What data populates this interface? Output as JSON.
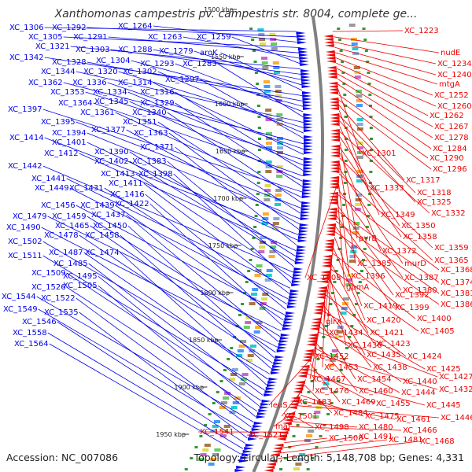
{
  "title": "Xanthomonas campestris pv. campestris str. 8004, complete ge...",
  "accession": "Accession: NC_007086",
  "topology": "Topology: circular; Length: 5,148,708 bp; Genes: 4,331",
  "colors": {
    "forward": "#0000ee",
    "reverse": "#ee0000",
    "backbone": "#808080",
    "gc": "#339933"
  },
  "kbp_marks": [
    "1500 kbp",
    "1550 kbp",
    "1600 kbp",
    "1650 kbp",
    "1700 kbp",
    "1750 kbp",
    "1800 kbp",
    "1850 kbp",
    "1900 kbp",
    "1950 kbp"
  ],
  "left_genes": [
    "XC_1306",
    "XC_1292",
    "XC_1264",
    "XC_1305",
    "XC_1291",
    "XC_1263",
    "XC_1259",
    "XC_1321",
    "XC_1303",
    "XC_1288",
    "XC_1279",
    "aroK",
    "XC_1342",
    "XC_1328",
    "XC_1304",
    "XC_1293",
    "XC_1283",
    "XC_1344",
    "XC_1320",
    "XC_1302",
    "XC_1297",
    "XC_1362",
    "XC_1336",
    "XC_1314",
    "XC_1353",
    "XC_1334",
    "XC_1316",
    "XC_1364",
    "XC_1345",
    "XC_1329",
    "XC_1397",
    "XC_1361",
    "XC_1340",
    "XC_1395",
    "XC_1351",
    "XC_1394",
    "XC_1377",
    "XC_1363",
    "XC_1414",
    "XC_1401",
    "XC_1371",
    "XC_1412",
    "XC_1390",
    "XC_1402",
    "XC_1383",
    "XC_1442",
    "XC_1413",
    "XC_1398",
    "XC_1441",
    "XC_1411",
    "XC_1449",
    "XC_1431",
    "XC_1416",
    "XC_1456",
    "XC_1439",
    "XC_1422",
    "XC_1479",
    "XC_1459",
    "XC_1437",
    "XC_1490",
    "XC_1465",
    "XC_1450",
    "XC_1478",
    "XC_1458",
    "XC_1502",
    "XC_1487",
    "XC_1474",
    "XC_1511",
    "XC_1485",
    "XC_1509",
    "XC_1495",
    "XC_1526",
    "XC_1505",
    "XC_1544",
    "XC_1522",
    "XC_1549",
    "XC_1535",
    "XC_1546",
    "XC_1558",
    "XC_1564"
  ],
  "right_genes": [
    "XC_1223",
    "nudE",
    "XC_1234",
    "XC_1240",
    "mtgA",
    "XC_1252",
    "XC_1260",
    "XC_1262",
    "XC_1267",
    "XC_1278",
    "XC_1284",
    "XC_1301",
    "XC_1290",
    "XC_1296",
    "XC_1317",
    "XC_1333",
    "XC_1318",
    "XC_1325",
    "XC_1349",
    "XC_1332",
    "XC_1350",
    "pyrB",
    "XC_1358",
    "XC_1372",
    "XC_1359",
    "XC_1385",
    "murD",
    "XC_1365",
    "XC_1408",
    "XC_1396",
    "XC_1387",
    "XC_1368",
    "gpmA",
    "XC_1380",
    "XC_1374",
    "XC_1392",
    "XC_1381",
    "XC_1399",
    "XC_1386",
    "XC_1419",
    "glrX",
    "XC_1420",
    "XC_1400",
    "XC_1434",
    "XC_1421",
    "XC_1405",
    "XC_1436",
    "XC_1423",
    "XC_1452",
    "XC_1435",
    "XC_1424",
    "XC_1453",
    "XC_1438",
    "XC_1425",
    "XC_1467",
    "XC_1454",
    "XC_1440",
    "XC_1427",
    "XC_1476",
    "XC_1460",
    "XC_1444",
    "XC_1432",
    "leuS",
    "XC_1469",
    "XC_1455",
    "XC_1445",
    "XC_1483",
    "XC_1484",
    "XC_1501",
    "XC_1475",
    "XC_1461",
    "XC_1446",
    "maf",
    "XC_1498",
    "XC_1480",
    "XC_1466",
    "XC_1541",
    "XC_1521",
    "XC_1508",
    "XC_1491",
    "XC_1481",
    "XC_1468"
  ]
}
